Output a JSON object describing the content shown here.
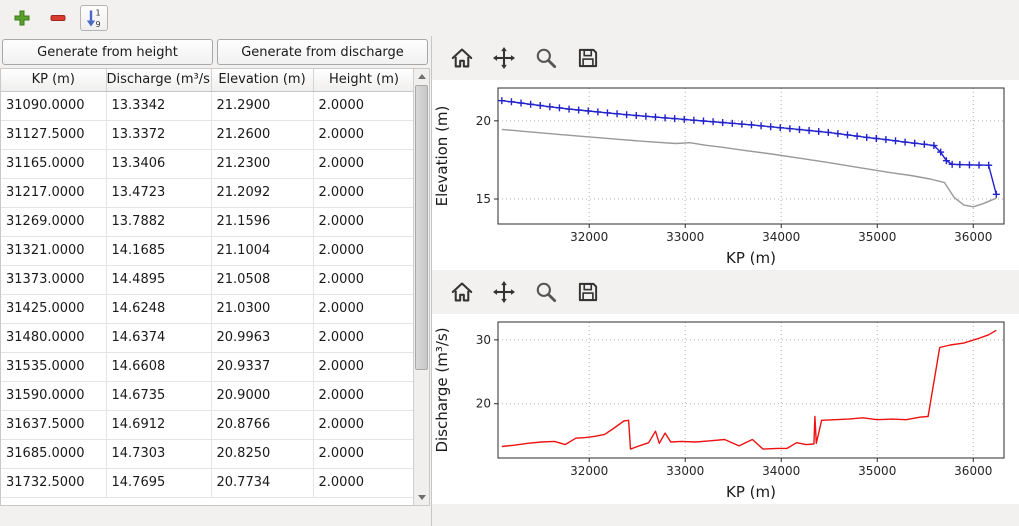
{
  "main_toolbar": {
    "buttons": [
      {
        "id": "add-row",
        "icon": "plus-icon",
        "color": "#5aa02c"
      },
      {
        "id": "remove-row",
        "icon": "minus-icon",
        "color": "#d93a2b"
      },
      {
        "id": "sort-rows",
        "icon": "sort-numeric-icon",
        "color": "#4a68c8",
        "top_char": "1",
        "bottom_char": "9"
      }
    ]
  },
  "left_panel": {
    "generate_from_height_label": "Generate from height",
    "generate_from_discharge_label": "Generate from discharge",
    "table": {
      "columns": [
        "KP (m)",
        "Discharge (m³/s)",
        "Elevation (m)",
        "Height (m)"
      ],
      "rows": [
        [
          "31090.0000",
          "13.3342",
          "21.2900",
          "2.0000"
        ],
        [
          "31127.5000",
          "13.3372",
          "21.2600",
          "2.0000"
        ],
        [
          "31165.0000",
          "13.3406",
          "21.2300",
          "2.0000"
        ],
        [
          "31217.0000",
          "13.4723",
          "21.2092",
          "2.0000"
        ],
        [
          "31269.0000",
          "13.7882",
          "21.1596",
          "2.0000"
        ],
        [
          "31321.0000",
          "14.1685",
          "21.1004",
          "2.0000"
        ],
        [
          "31373.0000",
          "14.4895",
          "21.0508",
          "2.0000"
        ],
        [
          "31425.0000",
          "14.6248",
          "21.0300",
          "2.0000"
        ],
        [
          "31480.0000",
          "14.6374",
          "20.9963",
          "2.0000"
        ],
        [
          "31535.0000",
          "14.6608",
          "20.9337",
          "2.0000"
        ],
        [
          "31590.0000",
          "14.6735",
          "20.9000",
          "2.0000"
        ],
        [
          "31637.5000",
          "14.6912",
          "20.8766",
          "2.0000"
        ],
        [
          "31685.0000",
          "14.7303",
          "20.8250",
          "2.0000"
        ],
        [
          "31732.5000",
          "14.7695",
          "20.7734",
          "2.0000"
        ]
      ]
    }
  },
  "plot_toolbars": {
    "icons": [
      "home",
      "pan",
      "zoom",
      "save"
    ]
  },
  "chart_data": [
    {
      "type": "line",
      "title": "",
      "xlabel": "KP (m)",
      "ylabel": "Elevation (m)",
      "xlim": [
        31050,
        36320
      ],
      "ylim": [
        13.4,
        22.1
      ],
      "xticks": [
        32000,
        33000,
        34000,
        35000,
        36000
      ],
      "yticks": [
        15,
        20
      ],
      "grid": true,
      "legend_position": "none",
      "series": [
        {
          "name": "crest-elevation",
          "color": "#2222cc",
          "marker": "+",
          "x": [
            31090,
            31190,
            31290,
            31390,
            31490,
            31590,
            31690,
            31790,
            31890,
            31990,
            32090,
            32190,
            32290,
            32390,
            32490,
            32590,
            32690,
            32790,
            32890,
            32990,
            33090,
            33190,
            33290,
            33390,
            33490,
            33590,
            33690,
            33790,
            33890,
            33990,
            34090,
            34190,
            34290,
            34390,
            34490,
            34590,
            34690,
            34790,
            34890,
            34990,
            35090,
            35190,
            35290,
            35390,
            35490,
            35590,
            35660,
            35720,
            35780,
            35860,
            35960,
            36060,
            36160,
            36240
          ],
          "y": [
            21.29,
            21.22,
            21.14,
            21.06,
            20.98,
            20.9,
            20.83,
            20.75,
            20.69,
            20.63,
            20.57,
            20.51,
            20.45,
            20.39,
            20.34,
            20.29,
            20.24,
            20.19,
            20.14,
            20.09,
            20.04,
            19.99,
            19.94,
            19.89,
            19.84,
            19.79,
            19.74,
            19.68,
            19.62,
            19.56,
            19.5,
            19.44,
            19.38,
            19.32,
            19.26,
            19.18,
            19.1,
            19.02,
            18.94,
            18.87,
            18.8,
            18.72,
            18.64,
            18.57,
            18.5,
            18.42,
            18.0,
            17.45,
            17.22,
            17.2,
            17.18,
            17.17,
            17.16,
            15.3
          ]
        },
        {
          "name": "ground-profile",
          "color": "#999999",
          "marker": null,
          "x": [
            31090,
            31400,
            31700,
            32000,
            32300,
            32600,
            32900,
            33050,
            33200,
            33400,
            33600,
            33900,
            34200,
            34500,
            34800,
            35100,
            35350,
            35550,
            35700,
            35800,
            35900,
            36000,
            36100,
            36240
          ],
          "y": [
            19.45,
            19.28,
            19.12,
            18.97,
            18.82,
            18.67,
            18.55,
            18.6,
            18.45,
            18.3,
            18.12,
            17.88,
            17.6,
            17.32,
            17.02,
            16.72,
            16.5,
            16.28,
            16.05,
            15.1,
            14.62,
            14.5,
            14.7,
            15.05
          ]
        }
      ]
    },
    {
      "type": "line",
      "title": "",
      "xlabel": "KP (m)",
      "ylabel": "Discharge (m³/s)",
      "xlim": [
        31050,
        36320
      ],
      "ylim": [
        11.5,
        32.8
      ],
      "xticks": [
        32000,
        33000,
        34000,
        35000,
        36000
      ],
      "yticks": [
        20,
        30
      ],
      "grid": true,
      "legend_position": "none",
      "series": [
        {
          "name": "discharge",
          "color": "#ee1111",
          "marker": null,
          "x": [
            31090,
            31220,
            31360,
            31500,
            31640,
            31750,
            31860,
            31960,
            32060,
            32160,
            32260,
            32360,
            32410,
            32430,
            32520,
            32620,
            32690,
            32730,
            32790,
            32850,
            32960,
            33110,
            33260,
            33410,
            33560,
            33700,
            33810,
            33960,
            34060,
            34160,
            34260,
            34340,
            34350,
            34365,
            34420,
            34560,
            34700,
            34850,
            35000,
            35150,
            35300,
            35450,
            35530,
            35650,
            35760,
            35900,
            36050,
            36160,
            36240
          ],
          "y": [
            13.3,
            13.5,
            13.8,
            14.0,
            14.1,
            13.6,
            14.6,
            14.7,
            14.9,
            15.2,
            16.2,
            17.3,
            17.4,
            12.9,
            13.4,
            13.9,
            15.7,
            13.8,
            15.4,
            14.0,
            14.1,
            14.0,
            14.2,
            14.4,
            13.4,
            14.4,
            12.9,
            13.0,
            13.0,
            13.9,
            13.6,
            13.7,
            18.0,
            13.8,
            17.4,
            17.5,
            17.6,
            17.8,
            17.5,
            17.6,
            17.5,
            17.9,
            18.0,
            28.8,
            29.2,
            29.5,
            30.2,
            30.8,
            31.5
          ]
        }
      ]
    }
  ]
}
